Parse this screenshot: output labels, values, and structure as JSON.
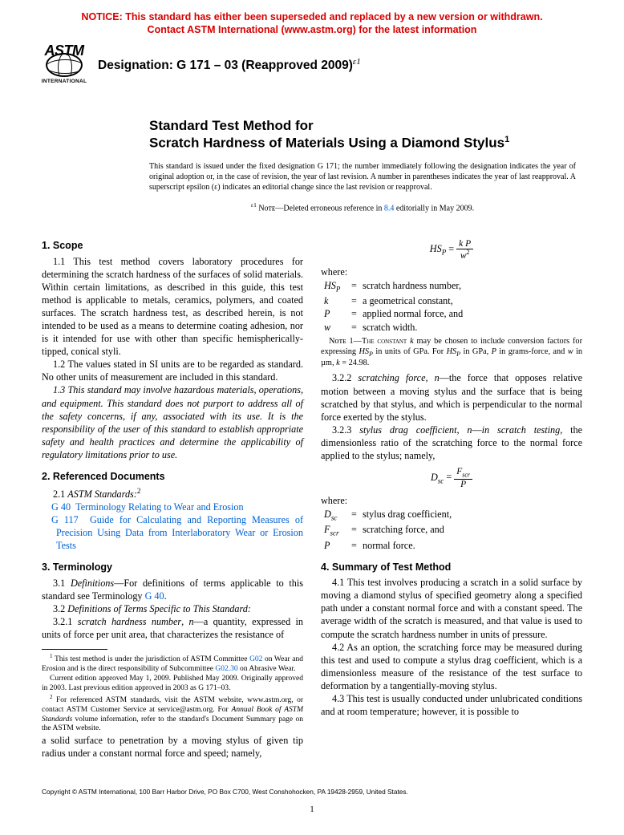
{
  "notice": {
    "line1": "NOTICE: This standard has either been superseded and replaced by a new version or withdrawn.",
    "line2": "Contact ASTM International (www.astm.org) for the latest information"
  },
  "logo": {
    "main": "ASTM",
    "sub": "INTERNATIONAL"
  },
  "designation": {
    "prefix": "Designation: G 171 – 03 (Reapproved 2009)",
    "sup": "ɛ1"
  },
  "title": {
    "line1": "Standard Test Method for",
    "line2": "Scratch Hardness of Materials Using a Diamond Stylus",
    "sup": "1"
  },
  "issuance": "This standard is issued under the fixed designation G 171; the number immediately following the designation indicates the year of original adoption or, in the case of revision, the year of last revision. A number in parentheses indicates the year of last reapproval. A superscript epsilon (ɛ) indicates an editorial change since the last revision or reapproval.",
  "eps_note": {
    "sup": "ɛ1",
    "label": " Nᴏᴛᴇ",
    "rest": "—Deleted erroneous reference in ",
    "ref": "8.4",
    "tail": " editorially in May 2009."
  },
  "sections": {
    "scope_h": "1. Scope",
    "p11": "1.1 This test method covers laboratory procedures for determining the scratch hardness of the surfaces of solid materials. Within certain limitations, as described in this guide, this test method is applicable to metals, ceramics, polymers, and coated surfaces. The scratch hardness test, as described herein, is not intended to be used as a means to determine coating adhesion, nor is it intended for use with other than specific hemispherically-tipped, conical styli.",
    "p12": "1.2 The values stated in SI units are to be regarded as standard. No other units of measurement are included in this standard.",
    "p13": "1.3 This standard may involve hazardous materials, operations, and equipment. This standard does not purport to address all of the safety concerns, if any, associated with its use. It is the responsibility of the user of this standard to establish appropriate safety and health practices and determine the applicability of regulatory limitations prior to use.",
    "ref_h": "2. Referenced Documents",
    "p21_a": "2.1 ",
    "p21_b": "ASTM Standards:",
    "p21_sup": "2",
    "ref1_code": "G 40",
    "ref1_txt": "Terminology Relating to Wear and Erosion",
    "ref2_code": "G 117",
    "ref2_txt": "Guide for Calculating and Reporting Measures of Precision Using Data from Interlaboratory Wear or Erosion Tests",
    "term_h": "3. Terminology",
    "p31_a": "3.1 ",
    "p31_b": "Definitions",
    "p31_c": "—For definitions of terms applicable to this standard see Terminology ",
    "p31_ref": "G 40",
    "p31_d": ".",
    "p32_a": "3.2 ",
    "p32_b": "Definitions of Terms Specific to This Standard:",
    "p321_a": "3.2.1 ",
    "p321_b": "scratch hardness number",
    "p321_c": ", ",
    "p321_d": "n",
    "p321_e": "—a quantity, expressed in units of force per unit area, that characterizes the resistance of",
    "col2_lead": "a solid surface to penetration by a moving stylus of given tip radius under a constant normal force and speed; namely,",
    "eq1_lhs": "HS",
    "eq1_lhs_sub": "P",
    "eq1_num": "k P",
    "eq1_den": "w",
    "eq1_den_sup": "2",
    "where": "where:",
    "d1_sym": "HS",
    "d1_sub": "P",
    "d1_txt": "scratch hardness number,",
    "d2_sym": "k",
    "d2_txt": "a geometrical constant,",
    "d3_sym": "P",
    "d3_txt": "applied normal force, and",
    "d4_sym": "w",
    "d4_txt": "scratch width.",
    "note1_a": "Nᴏᴛᴇ 1—The constant ",
    "note1_b": "k",
    "note1_c": " may be chosen to include conversion factors for expressing ",
    "note1_d": "HS",
    "note1_d_sub": "P",
    "note1_e": " in units of GPa. For ",
    "note1_f": "HS",
    "note1_f_sub": "P",
    "note1_g": " in GPa, ",
    "note1_h": "P",
    "note1_i": " in grams-force, and ",
    "note1_j": "w",
    "note1_k": " in µm, ",
    "note1_l": "k",
    "note1_m": " = 24.98.",
    "p322_a": "3.2.2 ",
    "p322_b": "scratching force",
    "p322_c": ", ",
    "p322_d": "n",
    "p322_e": "—the force that opposes relative motion between a moving stylus and the surface that is being scratched by that stylus, and which is perpendicular to the normal force exerted by the stylus.",
    "p323_a": "3.2.3 ",
    "p323_b": "stylus drag coefficient",
    "p323_c": ", ",
    "p323_d": "n",
    "p323_e": "—",
    "p323_f": "in scratch testing",
    "p323_g": ", the dimensionless ratio of the scratching force to the normal force applied to the stylus; namely,",
    "eq2_lhs": "D",
    "eq2_lhs_sub": "sc",
    "eq2_num": "F",
    "eq2_num_sub": "scr",
    "eq2_den": "P",
    "e1_sym": "D",
    "e1_sub": "sc",
    "e1_txt": "stylus drag coefficient,",
    "e2_sym": "F",
    "e2_sub": "scr",
    "e2_txt": "scratching force, and",
    "e3_sym": "P",
    "e3_txt": "normal force.",
    "sum_h": "4. Summary of Test Method",
    "p41": "4.1 This test involves producing a scratch in a solid surface by moving a diamond stylus of specified geometry along a specified path under a constant normal force and with a constant speed. The average width of the scratch is measured, and that value is used to compute the scratch hardness number in units of pressure.",
    "p42": "4.2 As an option, the scratching force may be measured during this test and used to compute a stylus drag coefficient, which is a dimensionless measure of the resistance of the test surface to deformation by a tangentially-moving stylus.",
    "p43": "4.3 This test is usually conducted under unlubricated conditions and at room temperature; however, it is possible to"
  },
  "footnotes": {
    "f1a": "1",
    "f1b": " This test method is under the jurisdiction of ASTM Committee ",
    "f1c": "G02",
    "f1d": " on Wear and Erosion and is the direct responsibility of Subcommittee ",
    "f1e": "G02.30",
    "f1f": " on Abrasive Wear.",
    "f1g": "Current edition approved May 1, 2009. Published May 2009. Originally approved in 2003. Last previous edition approved in 2003 as G 171–03.",
    "f2a": "2",
    "f2b": " For referenced ASTM standards, visit the ASTM website, www.astm.org, or contact ASTM Customer Service at service@astm.org. For ",
    "f2c": "Annual Book of ASTM Standards",
    "f2d": " volume information, refer to the standard's Document Summary page on the ASTM website."
  },
  "copyright": "Copyright © ASTM International, 100 Barr Harbor Drive, PO Box C700, West Conshohocken, PA 19428-2959, United States.",
  "pagenum": "1",
  "colors": {
    "link": "#0060d0",
    "notice": "#d80000",
    "text": "#000000",
    "bg": "#ffffff"
  }
}
